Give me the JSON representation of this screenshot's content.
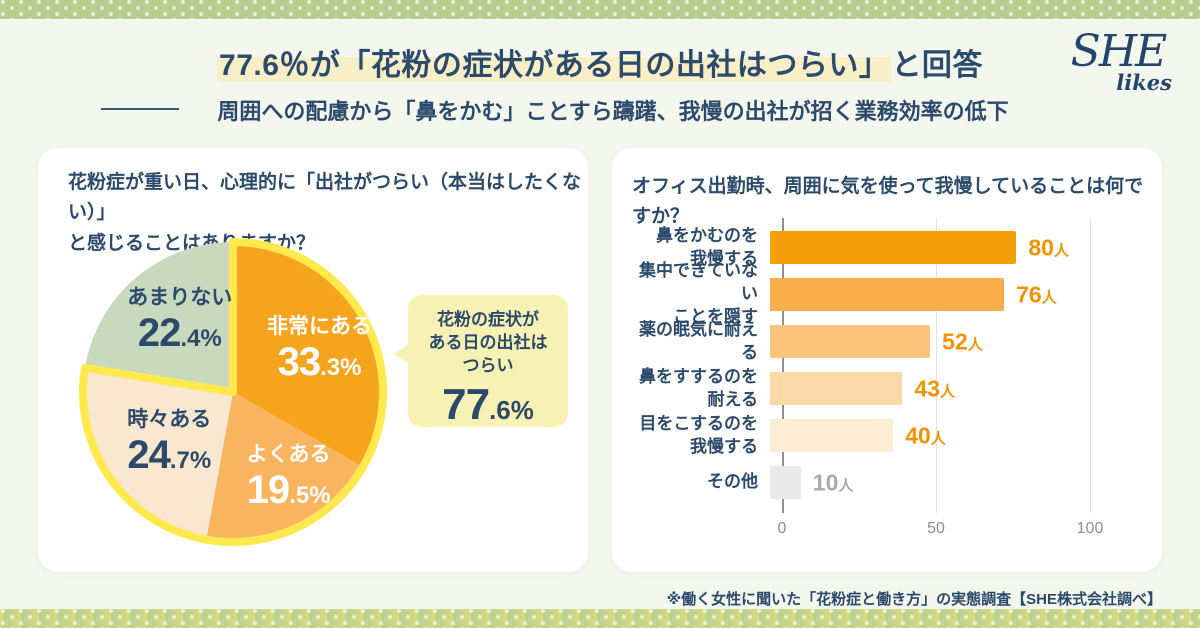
{
  "header": {
    "title_highlight": "77.6％が「花粉の症状がある日の出社はつらい」",
    "title_rest": "と回答",
    "subtitle": "周囲への配慮から「鼻をかむ」ことすら躊躇、我慢の出社が招く業務効率の低下",
    "logo": {
      "main": "SHE",
      "sub": "likes"
    }
  },
  "footer": {
    "note": "※働く女性に聞いた「花粉症と働き方」の実態調査【SHE株式会社調べ】"
  },
  "colors": {
    "navy": "#2C4A6B",
    "background": "#F4F7EE",
    "band_green": "#B6CE8F",
    "title_highlight": "#F9EFC7",
    "pie_outline_yellow": "#FFE94D",
    "callout_bg": "#F7F2B4",
    "value_orange": "#F29400",
    "value_gray": "#A9A9A9"
  },
  "chart_data": [
    {
      "type": "pie",
      "title": "花粉症が重い日、心理的に「出社がつらい（本当はしたくない）」と感じることはありますか？",
      "title_line1": "花粉症が重い日、心理的に「出社がつらい（本当はしたくない）」",
      "title_line2": "と感じることはありますか？",
      "start_angle_deg": 0,
      "direction": "clockwise",
      "slices": [
        {
          "label": "非常にある",
          "value": 33.3,
          "color": "#F6A41E",
          "text_color": "#FFFFFF"
        },
        {
          "label": "よくある",
          "value": 19.5,
          "color": "#F8B45F",
          "text_color": "#FFFFFF"
        },
        {
          "label": "時々ある",
          "value": 24.7,
          "color": "#FAE7D0",
          "text_color": "#2C4A6B"
        },
        {
          "label": "あまりない",
          "value": 22.4,
          "color": "#C9D9BE",
          "text_color": "#2C4A6B"
        }
      ],
      "highlight_group": {
        "slice_indexes": [
          0,
          1,
          2
        ],
        "outline_color": "#FFE94D",
        "total": 77.6
      },
      "annotation": {
        "line1": "花粉の症状が",
        "line2": "ある日の出社は",
        "line3": "つらい",
        "pct_int": "77",
        "pct_dec": ".6%"
      }
    },
    {
      "type": "bar",
      "orientation": "horizontal",
      "title": "オフィス出勤時、周囲に気を使って我慢していることは何ですか？",
      "categories": [
        [
          "鼻をかむのを",
          "我慢する"
        ],
        [
          "集中できていない",
          "ことを隠す"
        ],
        [
          "薬の眠気に耐える"
        ],
        [
          "鼻をすするのを",
          "耐える"
        ],
        [
          "目をこするのを",
          "我慢する"
        ],
        [
          "その他"
        ]
      ],
      "values": [
        80,
        76,
        52,
        43,
        40,
        10
      ],
      "unit": "人",
      "bar_colors": [
        "#F59F0A",
        "#F8AE4A",
        "#FAC47D",
        "#FBD8A7",
        "#FDEBD2",
        "#E9E9E9"
      ],
      "value_label_colors": [
        "#F29400",
        "#F29400",
        "#F29400",
        "#F29400",
        "#F29400",
        "#A9A9A9"
      ],
      "xticks": [
        0,
        50,
        100
      ],
      "xlim": [
        0,
        100
      ],
      "grid": true,
      "legend": false
    }
  ]
}
